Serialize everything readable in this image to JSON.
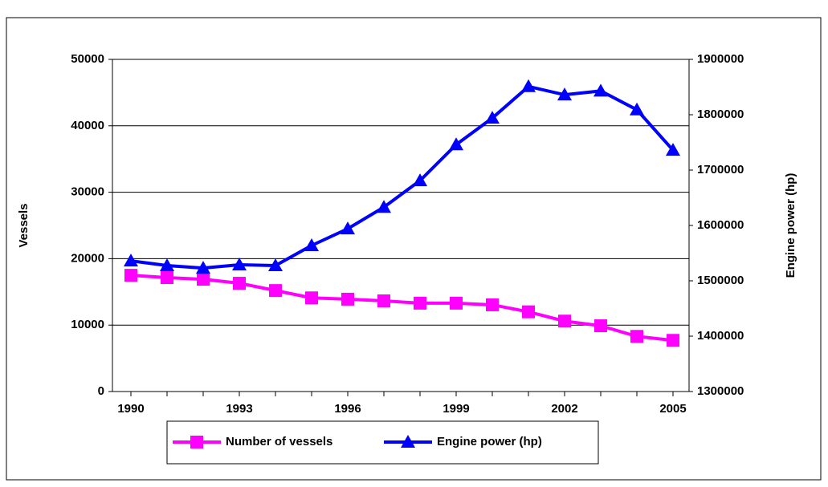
{
  "chart_data": {
    "type": "line",
    "categories": [
      "1990",
      null,
      null,
      "1993",
      null,
      null,
      "1996",
      null,
      null,
      "1999",
      null,
      null,
      "2002",
      null,
      null,
      "2005"
    ],
    "ylabel": "Vessels",
    "y2label": "Engine power (hp)",
    "ylim": [
      0,
      50000
    ],
    "yticks": [
      0,
      10000,
      20000,
      30000,
      40000,
      50000
    ],
    "y2lim": [
      1300000,
      1900000
    ],
    "y2ticks": [
      1300000,
      1400000,
      1500000,
      1600000,
      1700000,
      1800000,
      1900000
    ],
    "grid": true,
    "legend": "bottom",
    "series": [
      {
        "name": "Number of vessels",
        "color": "#ff00ff",
        "marker": "square",
        "values": [
          17500,
          17150,
          16900,
          16300,
          15200,
          14100,
          13900,
          13650,
          13300,
          13300,
          13050,
          12000,
          10600,
          9900,
          8300,
          7700
        ]
      },
      {
        "name": "Engine power (hp)",
        "color": "#0000ff",
        "marker": "triangle",
        "axis": "y2",
        "values": [
          1536000,
          1527500,
          1523000,
          1529000,
          1527500,
          1563800,
          1594000,
          1633000,
          1681000,
          1746000,
          1794000,
          1851000,
          1836000,
          1843000,
          1809000,
          1736000
        ]
      }
    ]
  }
}
